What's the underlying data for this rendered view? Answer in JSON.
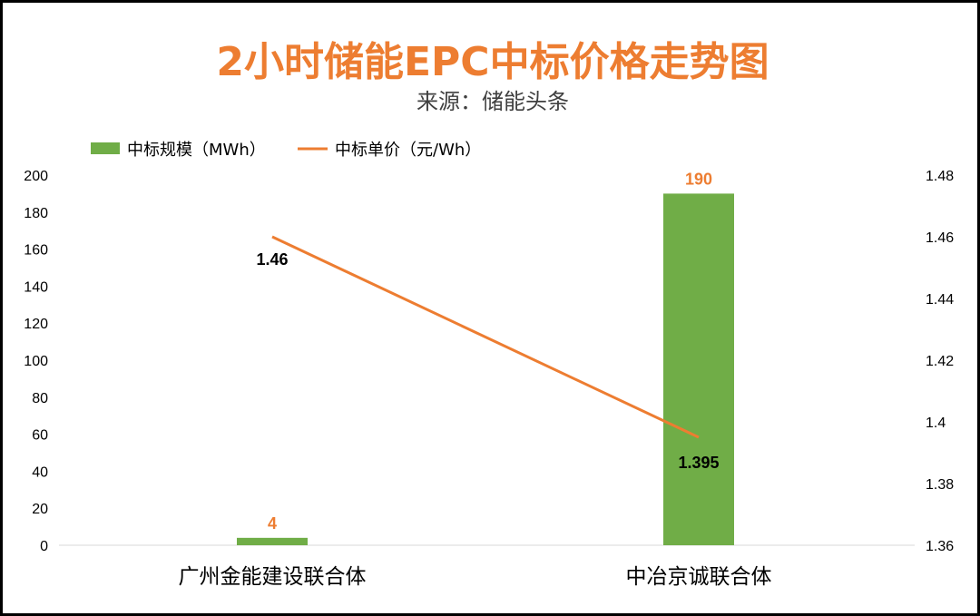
{
  "colors": {
    "bar": "#70AD47",
    "line": "#ED7D31",
    "title": "#ED7D31",
    "bar_label": "#ED7D31",
    "axis": "#D9D9D9"
  },
  "chart_data": {
    "type": "bar",
    "title": "2小时储能EPC中标价格走势图",
    "subtitle": "来源：储能头条",
    "categories": [
      "广州金能建设联合体",
      "中冶京诚联合体"
    ],
    "series": [
      {
        "name": "中标规模（MWh）",
        "type": "bar",
        "axis": "left",
        "values": [
          4,
          190
        ],
        "labels": [
          "4",
          "190"
        ]
      },
      {
        "name": "中标单价（元/Wh）",
        "type": "line",
        "axis": "right",
        "values": [
          1.46,
          1.395
        ],
        "labels": [
          "1.46",
          "1.395"
        ]
      }
    ],
    "y_left": {
      "ylim": [
        0,
        200
      ],
      "ticks": [
        "0",
        "20",
        "40",
        "60",
        "80",
        "100",
        "120",
        "140",
        "160",
        "180",
        "200"
      ]
    },
    "y_right": {
      "ylim": [
        1.36,
        1.48
      ],
      "ticks": [
        "1.36",
        "1.38",
        "1.4",
        "1.42",
        "1.44",
        "1.46",
        "1.48"
      ]
    },
    "grid": false,
    "legend_position": "top-left"
  }
}
